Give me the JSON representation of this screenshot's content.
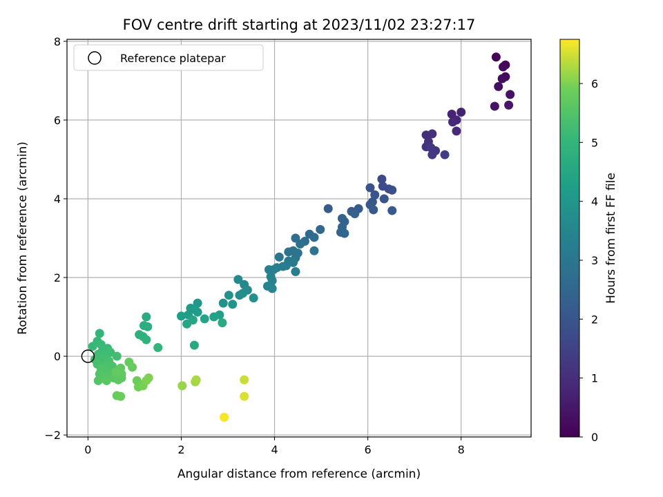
{
  "chart_data": {
    "type": "scatter",
    "title": "FOV centre drift starting at 2023/11/02 23:27:17",
    "xlabel": "Angular distance from reference (arcmin)",
    "ylabel": "Rotation from reference (arcmin)",
    "xlim": [
      -0.45,
      9.5
    ],
    "ylim": [
      -2.05,
      8.05
    ],
    "xticks": [
      "0",
      "2",
      "4",
      "6",
      "8"
    ],
    "yticks": [
      "−2",
      "0",
      "2",
      "4",
      "6",
      "8"
    ],
    "grid": true,
    "legend": {
      "position": "top-left",
      "entries": [
        "Reference platepar"
      ]
    },
    "reference_point": {
      "x": 0,
      "y": 0
    },
    "colorbar": {
      "label": "Hours from first FF file",
      "range": [
        0,
        6.75
      ],
      "ticks": [
        "0",
        "1",
        "2",
        "3",
        "4",
        "5",
        "6"
      ],
      "colormap": "viridis"
    },
    "points": [
      {
        "x": 8.75,
        "y": 7.6,
        "c": 0.05
      },
      {
        "x": 8.95,
        "y": 7.4,
        "c": 0.1
      },
      {
        "x": 8.9,
        "y": 7.35,
        "c": 0.15
      },
      {
        "x": 8.95,
        "y": 7.1,
        "c": 0.2
      },
      {
        "x": 8.88,
        "y": 7.05,
        "c": 0.25
      },
      {
        "x": 8.8,
        "y": 6.85,
        "c": 0.3
      },
      {
        "x": 9.05,
        "y": 6.65,
        "c": 0.35
      },
      {
        "x": 8.72,
        "y": 6.35,
        "c": 0.4
      },
      {
        "x": 9.02,
        "y": 6.38,
        "c": 0.45
      },
      {
        "x": 8.0,
        "y": 6.2,
        "c": 0.7
      },
      {
        "x": 7.8,
        "y": 6.15,
        "c": 0.75
      },
      {
        "x": 7.9,
        "y": 6.0,
        "c": 0.8
      },
      {
        "x": 7.82,
        "y": 5.95,
        "c": 0.85
      },
      {
        "x": 7.9,
        "y": 5.72,
        "c": 0.9
      },
      {
        "x": 7.25,
        "y": 5.62,
        "c": 1.0
      },
      {
        "x": 7.38,
        "y": 5.65,
        "c": 1.05
      },
      {
        "x": 7.3,
        "y": 5.45,
        "c": 1.1
      },
      {
        "x": 7.25,
        "y": 5.32,
        "c": 1.15
      },
      {
        "x": 7.35,
        "y": 5.3,
        "c": 1.2
      },
      {
        "x": 7.45,
        "y": 5.22,
        "c": 1.25
      },
      {
        "x": 7.38,
        "y": 5.12,
        "c": 1.3
      },
      {
        "x": 7.65,
        "y": 5.12,
        "c": 1.35
      },
      {
        "x": 6.3,
        "y": 4.5,
        "c": 1.7
      },
      {
        "x": 6.32,
        "y": 4.32,
        "c": 1.75
      },
      {
        "x": 6.45,
        "y": 4.25,
        "c": 1.8
      },
      {
        "x": 6.52,
        "y": 4.22,
        "c": 1.85
      },
      {
        "x": 6.05,
        "y": 4.28,
        "c": 1.9
      },
      {
        "x": 6.15,
        "y": 4.1,
        "c": 1.95
      },
      {
        "x": 6.35,
        "y": 4.0,
        "c": 2.0
      },
      {
        "x": 6.1,
        "y": 3.92,
        "c": 2.05
      },
      {
        "x": 6.05,
        "y": 3.85,
        "c": 2.1
      },
      {
        "x": 6.12,
        "y": 3.72,
        "c": 2.1
      },
      {
        "x": 6.52,
        "y": 3.7,
        "c": 2.15
      },
      {
        "x": 5.15,
        "y": 3.75,
        "c": 2.2
      },
      {
        "x": 5.8,
        "y": 3.75,
        "c": 2.2
      },
      {
        "x": 5.65,
        "y": 3.68,
        "c": 2.25
      },
      {
        "x": 5.72,
        "y": 3.62,
        "c": 2.3
      },
      {
        "x": 5.45,
        "y": 3.5,
        "c": 2.35
      },
      {
        "x": 5.5,
        "y": 3.42,
        "c": 2.4
      },
      {
        "x": 5.45,
        "y": 3.28,
        "c": 2.45
      },
      {
        "x": 5.42,
        "y": 3.15,
        "c": 2.5
      },
      {
        "x": 5.5,
        "y": 3.12,
        "c": 2.5
      },
      {
        "x": 4.98,
        "y": 3.22,
        "c": 2.55
      },
      {
        "x": 4.75,
        "y": 3.1,
        "c": 2.6
      },
      {
        "x": 4.85,
        "y": 3.02,
        "c": 2.65
      },
      {
        "x": 4.65,
        "y": 2.92,
        "c": 2.7
      },
      {
        "x": 4.45,
        "y": 3.0,
        "c": 2.75
      },
      {
        "x": 4.55,
        "y": 2.85,
        "c": 2.8
      },
      {
        "x": 4.3,
        "y": 2.65,
        "c": 2.85
      },
      {
        "x": 4.4,
        "y": 2.68,
        "c": 2.9
      },
      {
        "x": 4.5,
        "y": 2.62,
        "c": 2.95
      },
      {
        "x": 4.85,
        "y": 2.68,
        "c": 2.95
      },
      {
        "x": 4.45,
        "y": 2.5,
        "c": 3.0
      },
      {
        "x": 4.1,
        "y": 2.52,
        "c": 3.0
      },
      {
        "x": 4.3,
        "y": 2.42,
        "c": 3.05
      },
      {
        "x": 4.4,
        "y": 2.38,
        "c": 3.1
      },
      {
        "x": 4.25,
        "y": 2.3,
        "c": 3.15
      },
      {
        "x": 4.05,
        "y": 2.25,
        "c": 3.2
      },
      {
        "x": 4.18,
        "y": 2.28,
        "c": 3.2
      },
      {
        "x": 4.45,
        "y": 2.15,
        "c": 3.25
      },
      {
        "x": 3.88,
        "y": 2.2,
        "c": 3.3
      },
      {
        "x": 3.98,
        "y": 2.2,
        "c": 3.3
      },
      {
        "x": 3.92,
        "y": 2.02,
        "c": 3.35
      },
      {
        "x": 3.95,
        "y": 1.92,
        "c": 3.4
      },
      {
        "x": 3.85,
        "y": 1.78,
        "c": 3.45
      },
      {
        "x": 3.95,
        "y": 1.72,
        "c": 3.5
      },
      {
        "x": 3.22,
        "y": 1.95,
        "c": 3.55
      },
      {
        "x": 3.35,
        "y": 1.82,
        "c": 3.6
      },
      {
        "x": 3.42,
        "y": 1.68,
        "c": 3.65
      },
      {
        "x": 3.32,
        "y": 1.6,
        "c": 3.7
      },
      {
        "x": 3.25,
        "y": 1.55,
        "c": 3.75
      },
      {
        "x": 3.55,
        "y": 1.48,
        "c": 3.8
      },
      {
        "x": 3.02,
        "y": 1.55,
        "c": 3.85
      },
      {
        "x": 2.9,
        "y": 1.35,
        "c": 3.9
      },
      {
        "x": 3.1,
        "y": 1.32,
        "c": 3.95
      },
      {
        "x": 2.35,
        "y": 1.35,
        "c": 4.0
      },
      {
        "x": 2.2,
        "y": 1.22,
        "c": 4.05
      },
      {
        "x": 2.3,
        "y": 1.18,
        "c": 4.1
      },
      {
        "x": 2.35,
        "y": 1.12,
        "c": 4.15
      },
      {
        "x": 2.15,
        "y": 1.05,
        "c": 4.2
      },
      {
        "x": 2.0,
        "y": 1.02,
        "c": 4.25
      },
      {
        "x": 2.82,
        "y": 1.05,
        "c": 4.3
      },
      {
        "x": 2.7,
        "y": 1.0,
        "c": 4.35
      },
      {
        "x": 2.5,
        "y": 0.95,
        "c": 4.4
      },
      {
        "x": 2.25,
        "y": 0.92,
        "c": 4.45
      },
      {
        "x": 2.12,
        "y": 0.82,
        "c": 4.5
      },
      {
        "x": 2.88,
        "y": 0.85,
        "c": 4.55
      },
      {
        "x": 2.28,
        "y": 0.28,
        "c": 4.6
      },
      {
        "x": 1.25,
        "y": 1.0,
        "c": 4.65
      },
      {
        "x": 1.2,
        "y": 0.78,
        "c": 4.7
      },
      {
        "x": 1.28,
        "y": 0.75,
        "c": 4.75
      },
      {
        "x": 1.1,
        "y": 0.55,
        "c": 4.8
      },
      {
        "x": 1.18,
        "y": 0.5,
        "c": 4.85
      },
      {
        "x": 1.25,
        "y": 0.42,
        "c": 4.9
      },
      {
        "x": 1.5,
        "y": 0.22,
        "c": 4.95
      },
      {
        "x": 0.25,
        "y": 0.58,
        "c": 5.0
      },
      {
        "x": 0.2,
        "y": 0.38,
        "c": 5.05
      },
      {
        "x": 0.28,
        "y": 0.3,
        "c": 5.1
      },
      {
        "x": 0.1,
        "y": 0.25,
        "c": 5.1
      },
      {
        "x": 0.42,
        "y": 0.2,
        "c": 5.15
      },
      {
        "x": 0.3,
        "y": 0.12,
        "c": 5.15
      },
      {
        "x": 0.48,
        "y": 0.1,
        "c": 5.2
      },
      {
        "x": 0.22,
        "y": 0.05,
        "c": 5.2
      },
      {
        "x": 0.35,
        "y": 0.02,
        "c": 5.25
      },
      {
        "x": 0.62,
        "y": 0.0,
        "c": 5.25
      },
      {
        "x": 0.15,
        "y": -0.08,
        "c": 5.3
      },
      {
        "x": 0.3,
        "y": -0.1,
        "c": 5.3
      },
      {
        "x": 0.45,
        "y": -0.12,
        "c": 5.35
      },
      {
        "x": 0.2,
        "y": -0.2,
        "c": 5.35
      },
      {
        "x": 0.38,
        "y": -0.22,
        "c": 5.4
      },
      {
        "x": 0.52,
        "y": -0.25,
        "c": 5.4
      },
      {
        "x": 0.28,
        "y": -0.32,
        "c": 5.45
      },
      {
        "x": 0.4,
        "y": -0.38,
        "c": 5.45
      },
      {
        "x": 0.25,
        "y": -0.45,
        "c": 5.5
      },
      {
        "x": 0.5,
        "y": -0.45,
        "c": 5.5
      },
      {
        "x": 0.35,
        "y": -0.55,
        "c": 5.55
      },
      {
        "x": 0.22,
        "y": -0.62,
        "c": 5.55
      },
      {
        "x": 0.4,
        "y": -0.62,
        "c": 5.6
      },
      {
        "x": 0.55,
        "y": -0.55,
        "c": 5.6
      },
      {
        "x": 0.65,
        "y": -0.6,
        "c": 5.65
      },
      {
        "x": 0.72,
        "y": -0.55,
        "c": 5.65
      },
      {
        "x": 0.7,
        "y": -0.3,
        "c": 5.7
      },
      {
        "x": 0.72,
        "y": -0.45,
        "c": 5.7
      },
      {
        "x": 0.6,
        "y": -0.4,
        "c": 5.75
      },
      {
        "x": 0.88,
        "y": -0.15,
        "c": 5.75
      },
      {
        "x": 0.95,
        "y": -0.28,
        "c": 5.8
      },
      {
        "x": 0.62,
        "y": -1.0,
        "c": 5.8
      },
      {
        "x": 0.7,
        "y": -1.02,
        "c": 5.85
      },
      {
        "x": 1.05,
        "y": -0.62,
        "c": 5.85
      },
      {
        "x": 1.12,
        "y": -0.72,
        "c": 5.9
      },
      {
        "x": 1.08,
        "y": -0.78,
        "c": 5.9
      },
      {
        "x": 1.18,
        "y": -0.75,
        "c": 5.95
      },
      {
        "x": 1.25,
        "y": -0.62,
        "c": 6.0
      },
      {
        "x": 1.3,
        "y": -0.55,
        "c": 6.0
      },
      {
        "x": 2.02,
        "y": -0.75,
        "c": 6.15
      },
      {
        "x": 2.3,
        "y": -0.65,
        "c": 6.2
      },
      {
        "x": 2.32,
        "y": -0.6,
        "c": 6.25
      },
      {
        "x": 3.35,
        "y": -0.6,
        "c": 6.45
      },
      {
        "x": 3.35,
        "y": -1.02,
        "c": 6.55
      },
      {
        "x": 2.92,
        "y": -1.55,
        "c": 6.7
      }
    ]
  }
}
